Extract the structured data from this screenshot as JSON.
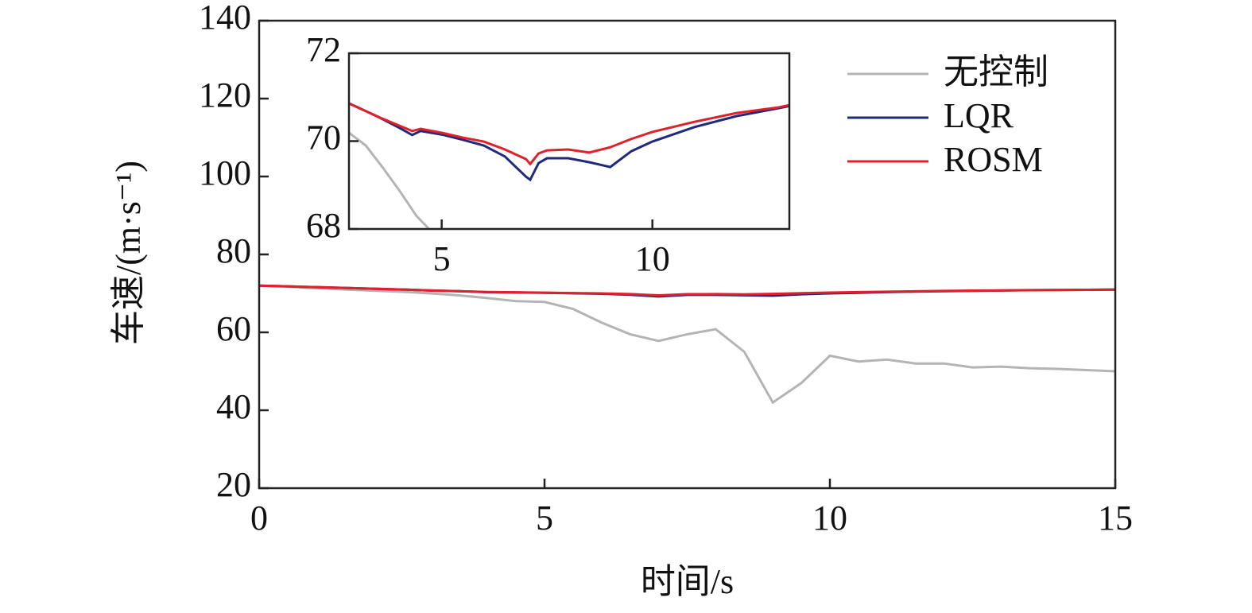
{
  "chart_data": [
    {
      "type": "line",
      "xlabel": "时间/s",
      "ylabel": "车速/(m·s⁻¹)",
      "xlim": [
        0,
        15
      ],
      "ylim": [
        20,
        140
      ],
      "xticks": [
        0,
        5,
        10,
        15
      ],
      "yticks": [
        20,
        40,
        60,
        80,
        100,
        120,
        140
      ],
      "legend": "upper right",
      "x": [
        0,
        0.5,
        1,
        1.5,
        2,
        2.5,
        3,
        3.5,
        4,
        4.5,
        5,
        5.5,
        6,
        6.5,
        7,
        7.5,
        8,
        8.5,
        9,
        9.5,
        10,
        10.5,
        11,
        11.5,
        12,
        12.5,
        13,
        13.5,
        14,
        14.5,
        15
      ],
      "series": [
        {
          "name": "无控制",
          "color": "#b4b4b4",
          "values": [
            72,
            71.7,
            71.3,
            71,
            70.7,
            70.4,
            70,
            69.5,
            68.8,
            68,
            67.8,
            66,
            62.5,
            59.5,
            57.8,
            59.5,
            60.8,
            55,
            42,
            47,
            54,
            52.5,
            53,
            52,
            52,
            51,
            51.2,
            50.8,
            50.6,
            50.3,
            50
          ]
        },
        {
          "name": "LQR",
          "color": "#1f2a7a",
          "values": [
            72,
            71.8,
            71.6,
            71.4,
            71.2,
            71,
            70.75,
            70.55,
            70.3,
            70.23,
            70.15,
            70.03,
            69.9,
            69.65,
            69.2,
            69.61,
            69.61,
            69.52,
            69.41,
            69.77,
            69.99,
            70.16,
            70.32,
            70.45,
            70.57,
            70.67,
            70.75,
            70.82,
            70.88,
            70.93,
            70.98
          ]
        },
        {
          "name": "ROSM",
          "color": "#e0202a",
          "values": [
            72,
            71.8,
            71.6,
            71.4,
            71.2,
            71,
            70.75,
            70.55,
            70.35,
            70.28,
            70.19,
            70.08,
            69.99,
            69.81,
            69.5,
            69.79,
            69.81,
            69.74,
            69.86,
            70.05,
            70.21,
            70.33,
            70.44,
            70.54,
            70.64,
            70.71,
            70.77,
            70.83,
            70.88,
            70.93,
            70.98
          ]
        }
      ]
    },
    {
      "type": "line",
      "xlim": [
        2.8,
        13.25
      ],
      "ylim": [
        68,
        72
      ],
      "xticks": [
        5,
        10
      ],
      "yticks": [
        68,
        70,
        72
      ],
      "series": [
        {
          "color": "#b4b4b4",
          "x": [
            2.8,
            3.2,
            3.6,
            4,
            4.4,
            4.7
          ],
          "values": [
            70.19,
            69.9,
            69.4,
            68.87,
            68.3,
            68
          ]
        },
        {
          "color": "#1f2a7a",
          "x": [
            2.8,
            3.5,
            4,
            4.3,
            4.5,
            5,
            5.5,
            6,
            6.5,
            7,
            7.1,
            7.3,
            7.5,
            8,
            8.5,
            9,
            9.5,
            10,
            11,
            12,
            13,
            13.25
          ],
          "values": [
            70.86,
            70.55,
            70.3,
            70.14,
            70.23,
            70.15,
            70.03,
            69.9,
            69.65,
            69.19,
            69.12,
            69.5,
            69.61,
            69.61,
            69.52,
            69.41,
            69.77,
            69.99,
            70.32,
            70.57,
            70.75,
            70.8
          ]
        },
        {
          "color": "#e0202a",
          "x": [
            2.8,
            3.5,
            4,
            4.3,
            4.5,
            5,
            5.5,
            6,
            6.5,
            7,
            7.1,
            7.3,
            7.5,
            8,
            8.5,
            9,
            9.5,
            10,
            11,
            12,
            13,
            13.25
          ],
          "values": [
            70.86,
            70.55,
            70.35,
            70.23,
            70.28,
            70.19,
            70.08,
            69.99,
            69.81,
            69.59,
            69.48,
            69.72,
            69.79,
            69.81,
            69.74,
            69.86,
            70.05,
            70.21,
            70.44,
            70.64,
            70.77,
            70.82
          ]
        }
      ]
    }
  ]
}
